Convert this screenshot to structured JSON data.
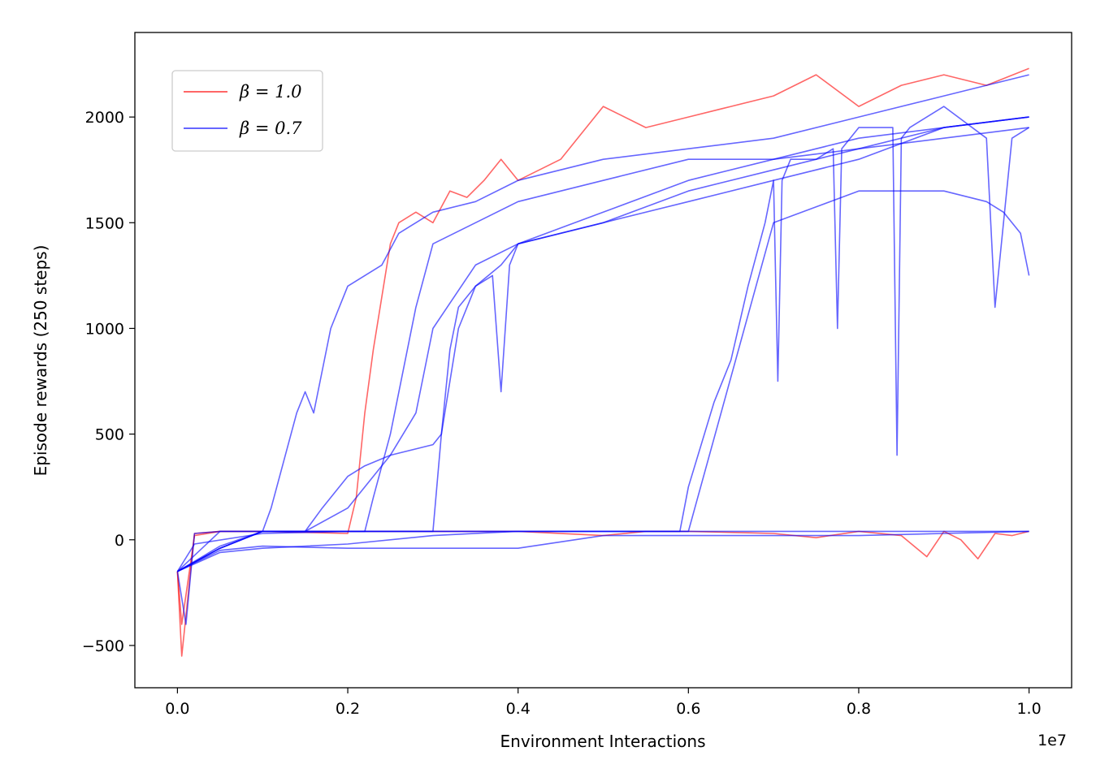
{
  "chart_data": {
    "type": "line",
    "xlabel": "Environment Interactions",
    "ylabel": "Episode rewards (250 steps)",
    "x_offset_label": "1e7",
    "xlim": [
      -0.05,
      1.05
    ],
    "ylim": [
      -700,
      2400
    ],
    "xticks": [
      0.0,
      0.2,
      0.4,
      0.6,
      0.8,
      1.0
    ],
    "xtick_labels": [
      "0.0",
      "0.2",
      "0.4",
      "0.6",
      "0.8",
      "1.0"
    ],
    "yticks": [
      -500,
      0,
      500,
      1000,
      1500,
      2000
    ],
    "ytick_labels": [
      "−500",
      "0",
      "500",
      "1000",
      "1500",
      "2000"
    ],
    "grid": false,
    "legend_position": "top-left",
    "legend": [
      {
        "label": "β = 1.0",
        "color": "#ff3333"
      },
      {
        "label": "β = 0.7",
        "color": "#3333ff"
      }
    ],
    "series": [
      {
        "name": "β = 1.0",
        "color": "#ff0000",
        "x": [
          0.0,
          0.005,
          0.02,
          0.05,
          0.1,
          0.2,
          0.21,
          0.22,
          0.23,
          0.25,
          0.26,
          0.28,
          0.3,
          0.32,
          0.34,
          0.36,
          0.38,
          0.4,
          0.45,
          0.5,
          0.55,
          0.6,
          0.65,
          0.7,
          0.75,
          0.8,
          0.85,
          0.9,
          0.95,
          1.0
        ],
        "y": [
          -150,
          -550,
          30,
          40,
          40,
          30,
          200,
          600,
          900,
          1400,
          1500,
          1550,
          1500,
          1650,
          1620,
          1700,
          1800,
          1700,
          1800,
          2050,
          1950,
          2000,
          2050,
          2100,
          2200,
          2050,
          2150,
          2200,
          2150,
          2230
        ]
      },
      {
        "name": "β = 1.0",
        "color": "#ff0000",
        "x": [
          0.0,
          0.005,
          0.02,
          0.05,
          0.1,
          0.2,
          0.3,
          0.4,
          0.5,
          0.55,
          0.6,
          0.7,
          0.75,
          0.8,
          0.85,
          0.88,
          0.9,
          0.92,
          0.94,
          0.96,
          0.98,
          1.0
        ],
        "y": [
          -150,
          -400,
          20,
          40,
          40,
          40,
          40,
          40,
          20,
          40,
          40,
          30,
          10,
          40,
          20,
          -80,
          40,
          0,
          -90,
          30,
          20,
          40
        ]
      },
      {
        "name": "β = 0.7",
        "color": "#0000ff",
        "x": [
          0.0,
          0.01,
          0.02,
          0.05,
          0.1,
          0.11,
          0.14,
          0.15,
          0.16,
          0.18,
          0.2,
          0.24,
          0.26,
          0.28,
          0.3,
          0.35,
          0.4,
          0.5,
          0.6,
          0.7,
          0.8,
          0.9,
          1.0
        ],
        "y": [
          -150,
          -400,
          30,
          40,
          40,
          150,
          600,
          700,
          600,
          1000,
          1200,
          1300,
          1450,
          1500,
          1550,
          1600,
          1700,
          1800,
          1850,
          1900,
          2000,
          2100,
          2200
        ]
      },
      {
        "name": "β = 0.7",
        "color": "#0000ff",
        "x": [
          0.0,
          0.02,
          0.1,
          0.2,
          0.22,
          0.23,
          0.25,
          0.28,
          0.3,
          0.35,
          0.4,
          0.5,
          0.6,
          0.7,
          0.8,
          0.9,
          1.0
        ],
        "y": [
          -150,
          -20,
          30,
          40,
          40,
          200,
          500,
          1100,
          1400,
          1500,
          1600,
          1700,
          1800,
          1800,
          1900,
          1950,
          2000
        ]
      },
      {
        "name": "β = 0.7",
        "color": "#0000ff",
        "x": [
          0.0,
          0.05,
          0.1,
          0.15,
          0.17,
          0.2,
          0.22,
          0.25,
          0.28,
          0.3,
          0.35,
          0.4,
          0.5,
          0.6,
          0.7,
          0.8,
          0.9,
          1.0
        ],
        "y": [
          -150,
          -40,
          40,
          40,
          150,
          300,
          350,
          400,
          600,
          1000,
          1300,
          1400,
          1550,
          1700,
          1800,
          1850,
          1900,
          1950
        ]
      },
      {
        "name": "β = 0.7",
        "color": "#0000ff",
        "x": [
          0.0,
          0.05,
          0.1,
          0.15,
          0.2,
          0.25,
          0.3,
          0.31,
          0.32,
          0.33,
          0.35,
          0.37,
          0.38,
          0.39,
          0.4,
          0.5,
          0.6,
          0.7,
          0.8,
          0.9,
          1.0
        ],
        "y": [
          -150,
          -30,
          40,
          40,
          40,
          40,
          40,
          500,
          900,
          1100,
          1200,
          1250,
          700,
          1300,
          1400,
          1500,
          1600,
          1700,
          1800,
          1950,
          2000
        ]
      },
      {
        "name": "β = 0.7",
        "color": "#0000ff",
        "x": [
          0.0,
          0.05,
          0.1,
          0.15,
          0.2,
          0.25,
          0.3,
          0.31,
          0.33,
          0.35,
          0.38,
          0.4,
          0.5,
          0.6,
          0.7,
          0.8,
          0.9,
          1.0
        ],
        "y": [
          -150,
          -40,
          40,
          40,
          150,
          400,
          450,
          500,
          1000,
          1200,
          1300,
          1400,
          1500,
          1650,
          1750,
          1850,
          1950,
          2000
        ]
      },
      {
        "name": "β = 0.7",
        "color": "#0000ff",
        "x": [
          0.0,
          0.05,
          0.1,
          0.2,
          0.3,
          0.4,
          0.5,
          0.59,
          0.6,
          0.63,
          0.65,
          0.67,
          0.69,
          0.7,
          0.705,
          0.71,
          0.72,
          0.75,
          0.77,
          0.775,
          0.78,
          0.8,
          0.84,
          0.845,
          0.85,
          0.86,
          0.9,
          0.95,
          0.96,
          0.98,
          1.0
        ],
        "y": [
          -150,
          -40,
          40,
          40,
          40,
          40,
          40,
          40,
          250,
          650,
          850,
          1200,
          1500,
          1700,
          750,
          1700,
          1800,
          1800,
          1850,
          1000,
          1850,
          1950,
          1950,
          400,
          1900,
          1950,
          2050,
          1900,
          1100,
          1900,
          1950
        ]
      },
      {
        "name": "β = 0.7",
        "color": "#0000ff",
        "x": [
          0.0,
          0.05,
          0.1,
          0.2,
          0.3,
          0.4,
          0.5,
          0.6,
          0.7,
          0.8,
          0.9,
          1.0
        ],
        "y": [
          -150,
          -50,
          -30,
          -40,
          -40,
          -40,
          20,
          20,
          20,
          20,
          30,
          40
        ]
      },
      {
        "name": "β = 0.7",
        "color": "#0000ff",
        "x": [
          0.0,
          0.05,
          0.1,
          0.2,
          0.3,
          0.4,
          0.5,
          0.6,
          0.7,
          0.8,
          0.9,
          0.95,
          0.97,
          0.98,
          0.99,
          1.0
        ],
        "y": [
          -150,
          -60,
          -40,
          -20,
          20,
          40,
          40,
          40,
          1500,
          1650,
          1650,
          1600,
          1550,
          1500,
          1450,
          1250
        ]
      },
      {
        "name": "β = 0.7",
        "color": "#0000ff",
        "x": [
          0.0,
          0.05,
          0.1,
          0.2,
          0.3,
          0.4,
          0.5,
          0.6,
          0.7,
          0.8,
          0.9,
          1.0
        ],
        "y": [
          -150,
          40,
          40,
          40,
          40,
          40,
          40,
          40,
          40,
          40,
          40,
          40
        ]
      }
    ]
  }
}
